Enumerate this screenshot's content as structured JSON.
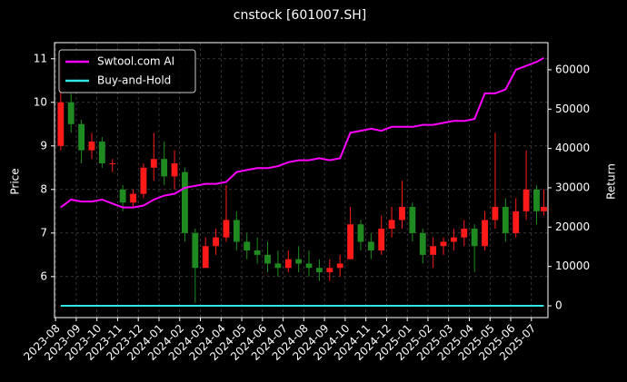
{
  "chart_data": {
    "type": "candlestick",
    "title": "cnstock [601007.SH]",
    "ylabel": "Price",
    "y2label": "Return",
    "x": [
      0.25,
      0.75,
      1.25,
      1.75,
      2.25,
      2.75,
      3.25,
      3.75,
      4.25,
      4.75,
      5.25,
      5.75,
      6.25,
      6.75,
      7.25,
      7.75,
      8.25,
      8.75,
      9.25,
      9.75,
      10.25,
      10.75,
      11.25,
      11.75,
      12.25,
      12.75,
      13.25,
      13.75,
      14.25,
      14.75,
      15.25,
      15.75,
      16.25,
      16.75,
      17.25,
      17.75,
      18.25,
      18.75,
      19.25,
      19.75,
      20.25,
      20.75,
      21.25,
      21.75,
      22.25,
      22.75,
      23.25,
      23.6
    ],
    "open": [
      9.0,
      10.0,
      9.5,
      8.9,
      9.1,
      8.6,
      8.0,
      7.7,
      7.9,
      8.5,
      8.7,
      8.3,
      8.4,
      7.0,
      6.2,
      6.7,
      6.9,
      7.3,
      6.8,
      6.6,
      6.5,
      6.3,
      6.2,
      6.4,
      6.3,
      6.2,
      6.1,
      6.2,
      6.4,
      7.2,
      6.8,
      6.6,
      7.1,
      7.3,
      7.6,
      7.0,
      6.5,
      6.7,
      6.8,
      6.9,
      7.1,
      6.7,
      7.3,
      7.6,
      7.0,
      7.5,
      8.0,
      7.5
    ],
    "high": [
      11.0,
      10.2,
      9.6,
      9.3,
      9.2,
      8.7,
      8.1,
      8.0,
      8.6,
      9.3,
      9.1,
      8.9,
      8.5,
      7.1,
      6.9,
      7.1,
      8.1,
      7.5,
      7.0,
      6.9,
      6.8,
      6.6,
      6.6,
      6.7,
      6.6,
      6.4,
      6.4,
      6.5,
      7.6,
      7.3,
      7.0,
      7.4,
      7.6,
      8.2,
      7.7,
      7.1,
      6.9,
      6.9,
      7.1,
      7.3,
      7.2,
      7.5,
      9.3,
      7.8,
      7.8,
      8.9,
      8.1,
      8.0
    ],
    "low": [
      8.9,
      9.3,
      8.6,
      8.7,
      8.5,
      8.4,
      7.5,
      7.6,
      7.8,
      8.2,
      8.1,
      8.0,
      6.8,
      5.4,
      6.2,
      6.5,
      6.8,
      6.6,
      6.4,
      6.3,
      6.1,
      6.0,
      6.1,
      6.1,
      6.0,
      5.9,
      5.9,
      6.0,
      6.4,
      6.6,
      6.4,
      6.5,
      6.9,
      7.1,
      6.8,
      6.3,
      6.2,
      6.5,
      6.6,
      6.7,
      6.1,
      6.6,
      7.1,
      6.8,
      6.9,
      7.3,
      7.2,
      7.4
    ],
    "close": [
      10.0,
      9.5,
      8.9,
      9.1,
      8.6,
      8.6,
      7.7,
      7.9,
      8.5,
      8.7,
      8.3,
      8.6,
      7.0,
      6.2,
      6.7,
      6.9,
      7.3,
      6.8,
      6.6,
      6.5,
      6.3,
      6.2,
      6.4,
      6.3,
      6.2,
      6.1,
      6.2,
      6.3,
      7.2,
      6.8,
      6.6,
      7.1,
      7.3,
      7.6,
      7.0,
      6.5,
      6.7,
      6.8,
      6.9,
      7.1,
      6.7,
      7.3,
      7.6,
      7.0,
      7.5,
      8.0,
      7.5,
      7.6
    ],
    "up_color": "#ff1a1a",
    "down_color": "#1f8a1f",
    "series": [
      {
        "name": "Swtool.com AI",
        "color": "#ff00ff",
        "axis": "y2",
        "values": [
          25000,
          27000,
          26500,
          26500,
          27000,
          26000,
          25000,
          25000,
          25500,
          27000,
          28000,
          28500,
          30000,
          30500,
          31000,
          31000,
          31500,
          34000,
          34500,
          35000,
          35000,
          35500,
          36500,
          37000,
          37000,
          37500,
          37000,
          37500,
          44000,
          44500,
          45000,
          44500,
          45500,
          45500,
          45500,
          46000,
          46000,
          46500,
          47000,
          47000,
          47500,
          54000,
          54000,
          55000,
          60000,
          61000,
          62000,
          63000
        ]
      },
      {
        "name": "Buy-and-Hold",
        "color": "#33e6e6",
        "axis": "y2",
        "values": [
          0,
          0,
          0,
          0,
          0,
          0,
          0,
          0,
          0,
          0,
          0,
          0,
          0,
          0,
          0,
          0,
          0,
          0,
          0,
          0,
          0,
          0,
          0,
          0,
          0,
          0,
          0,
          0,
          0,
          0,
          0,
          0,
          0,
          0,
          0,
          0,
          0,
          0,
          0,
          0,
          0,
          0,
          0,
          0,
          0,
          0,
          0,
          0
        ]
      }
    ],
    "xlim": [
      -0.05,
      23.8
    ],
    "ylim": [
      5.06,
      11.37
    ],
    "y2lim": [
      -3000,
      66900
    ],
    "xticks": [
      {
        "value": 0,
        "label": "2023-08"
      },
      {
        "value": 1,
        "label": "2023-09"
      },
      {
        "value": 2,
        "label": "2023-10"
      },
      {
        "value": 3,
        "label": "2023-11"
      },
      {
        "value": 4,
        "label": "2023-12"
      },
      {
        "value": 5,
        "label": "2024-01"
      },
      {
        "value": 6,
        "label": "2024-02"
      },
      {
        "value": 7,
        "label": "2024-03"
      },
      {
        "value": 8,
        "label": "2024-04"
      },
      {
        "value": 9,
        "label": "2024-05"
      },
      {
        "value": 10,
        "label": "2024-06"
      },
      {
        "value": 11,
        "label": "2024-07"
      },
      {
        "value": 12,
        "label": "2024-08"
      },
      {
        "value": 13,
        "label": "2024-09"
      },
      {
        "value": 14,
        "label": "2024-10"
      },
      {
        "value": 15,
        "label": "2024-11"
      },
      {
        "value": 16,
        "label": "2024-12"
      },
      {
        "value": 17,
        "label": "2025-01"
      },
      {
        "value": 18,
        "label": "2025-02"
      },
      {
        "value": 19,
        "label": "2025-03"
      },
      {
        "value": 20,
        "label": "2025-04"
      },
      {
        "value": 21,
        "label": "2025-05"
      },
      {
        "value": 22,
        "label": "2025-06"
      },
      {
        "value": 23,
        "label": "2025-07"
      }
    ],
    "yticks": [
      6,
      7,
      8,
      9,
      10,
      11
    ],
    "y2ticks": [
      0,
      10000,
      20000,
      30000,
      40000,
      50000,
      60000
    ],
    "grid": true,
    "legend": "upper left"
  }
}
